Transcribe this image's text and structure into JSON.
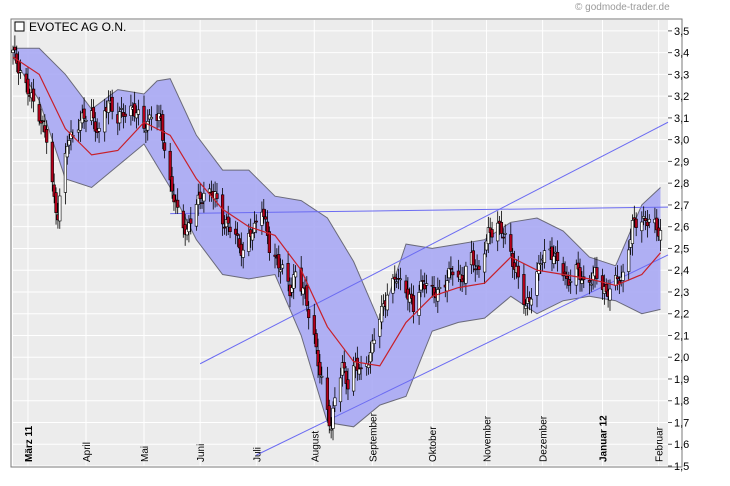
{
  "copyright": "© godmode-trader.de",
  "colors": {
    "band": "#a9a9f4",
    "band_edge": "#6a6a7a",
    "sma": "#c8202a",
    "trendline": "#6b6bf2",
    "candle_down": "#b3001a",
    "candle_up": "#ffffff",
    "plot_bg": "#ececec",
    "grid": "#ffffff"
  },
  "chart_data": {
    "type": "candlestick",
    "title": "EVOTEC AG O.N.",
    "y_axis_side": "right",
    "ylim": [
      1.5,
      3.55
    ],
    "y_ticks": [
      "3,5",
      "3,4",
      "3,3",
      "3,2",
      "3,1",
      "3,0",
      "2,9",
      "2,8",
      "2,7",
      "2,6",
      "2,5",
      "2,4",
      "2,3",
      "2,2",
      "2,1",
      "2,0",
      "1,9",
      "1,8",
      "1,7",
      "1,6",
      "1,5"
    ],
    "y_tick_values": [
      3.5,
      3.4,
      3.3,
      3.2,
      3.1,
      3.0,
      2.9,
      2.8,
      2.7,
      2.6,
      2.5,
      2.4,
      2.3,
      2.2,
      2.1,
      2.0,
      1.9,
      1.8,
      1.7,
      1.6,
      1.5
    ],
    "grid": true,
    "x_axis": {
      "start": "2011-02-21",
      "end": "2012-02-06",
      "labels": [
        {
          "date": "2011-03-01",
          "text": "März 11",
          "bold": true
        },
        {
          "date": "2011-04-01",
          "text": "April",
          "bold": false
        },
        {
          "date": "2011-05-02",
          "text": "Mai",
          "bold": false
        },
        {
          "date": "2011-06-01",
          "text": "Juni",
          "bold": false
        },
        {
          "date": "2011-07-01",
          "text": "Juli",
          "bold": false
        },
        {
          "date": "2011-08-01",
          "text": "August",
          "bold": false
        },
        {
          "date": "2011-09-01",
          "text": "September",
          "bold": false
        },
        {
          "date": "2011-10-03",
          "text": "Oktober",
          "bold": false
        },
        {
          "date": "2011-11-01",
          "text": "November",
          "bold": false
        },
        {
          "date": "2011-12-01",
          "text": "Dezember",
          "bold": false
        },
        {
          "date": "2012-01-02",
          "text": "Januar 12",
          "bold": true
        },
        {
          "date": "2012-02-01",
          "text": "Februar",
          "bold": false
        }
      ]
    },
    "close_path": [
      {
        "date": "2011-02-21",
        "close": 3.4
      },
      {
        "date": "2011-02-24",
        "close": 3.34
      },
      {
        "date": "2011-03-01",
        "close": 3.22
      },
      {
        "date": "2011-03-07",
        "close": 3.12
      },
      {
        "date": "2011-03-11",
        "close": 3.0
      },
      {
        "date": "2011-03-15",
        "close": 2.72
      },
      {
        "date": "2011-03-17",
        "close": 2.66
      },
      {
        "date": "2011-03-22",
        "close": 2.98
      },
      {
        "date": "2011-03-28",
        "close": 3.08
      },
      {
        "date": "2011-04-04",
        "close": 3.12
      },
      {
        "date": "2011-04-08",
        "close": 3.02
      },
      {
        "date": "2011-04-13",
        "close": 3.18
      },
      {
        "date": "2011-04-18",
        "close": 3.1
      },
      {
        "date": "2011-04-26",
        "close": 3.15
      },
      {
        "date": "2011-05-02",
        "close": 3.05
      },
      {
        "date": "2011-05-06",
        "close": 3.12
      },
      {
        "date": "2011-05-11",
        "close": 3.08
      },
      {
        "date": "2011-05-16",
        "close": 2.8
      },
      {
        "date": "2011-05-20",
        "close": 2.66
      },
      {
        "date": "2011-05-25",
        "close": 2.58
      },
      {
        "date": "2011-05-30",
        "close": 2.7
      },
      {
        "date": "2011-06-03",
        "close": 2.76
      },
      {
        "date": "2011-06-09",
        "close": 2.74
      },
      {
        "date": "2011-06-14",
        "close": 2.62
      },
      {
        "date": "2011-06-20",
        "close": 2.56
      },
      {
        "date": "2011-06-24",
        "close": 2.48
      },
      {
        "date": "2011-06-30",
        "close": 2.6
      },
      {
        "date": "2011-07-04",
        "close": 2.7
      },
      {
        "date": "2011-07-08",
        "close": 2.5
      },
      {
        "date": "2011-07-14",
        "close": 2.42
      },
      {
        "date": "2011-07-19",
        "close": 2.3
      },
      {
        "date": "2011-07-22",
        "close": 2.4
      },
      {
        "date": "2011-07-27",
        "close": 2.28
      },
      {
        "date": "2011-08-01",
        "close": 2.1
      },
      {
        "date": "2011-08-04",
        "close": 1.92
      },
      {
        "date": "2011-08-08",
        "close": 1.75
      },
      {
        "date": "2011-08-10",
        "close": 1.68
      },
      {
        "date": "2011-08-12",
        "close": 1.82
      },
      {
        "date": "2011-08-16",
        "close": 1.95
      },
      {
        "date": "2011-08-19",
        "close": 1.88
      },
      {
        "date": "2011-08-23",
        "close": 1.97
      },
      {
        "date": "2011-08-26",
        "close": 1.92
      },
      {
        "date": "2011-08-31",
        "close": 2.02
      },
      {
        "date": "2011-09-05",
        "close": 2.18
      },
      {
        "date": "2011-09-09",
        "close": 2.3
      },
      {
        "date": "2011-09-14",
        "close": 2.36
      },
      {
        "date": "2011-09-19",
        "close": 2.32
      },
      {
        "date": "2011-09-23",
        "close": 2.22
      },
      {
        "date": "2011-09-28",
        "close": 2.36
      },
      {
        "date": "2011-10-04",
        "close": 2.28
      },
      {
        "date": "2011-10-10",
        "close": 2.35
      },
      {
        "date": "2011-10-14",
        "close": 2.4
      },
      {
        "date": "2011-10-19",
        "close": 2.36
      },
      {
        "date": "2011-10-24",
        "close": 2.45
      },
      {
        "date": "2011-10-28",
        "close": 2.4
      },
      {
        "date": "2011-11-02",
        "close": 2.56
      },
      {
        "date": "2011-11-07",
        "close": 2.62
      },
      {
        "date": "2011-11-11",
        "close": 2.54
      },
      {
        "date": "2011-11-17",
        "close": 2.4
      },
      {
        "date": "2011-11-22",
        "close": 2.22
      },
      {
        "date": "2011-11-25",
        "close": 2.3
      },
      {
        "date": "2011-11-30",
        "close": 2.44
      },
      {
        "date": "2011-12-05",
        "close": 2.5
      },
      {
        "date": "2011-12-09",
        "close": 2.44
      },
      {
        "date": "2011-12-14",
        "close": 2.35
      },
      {
        "date": "2011-12-19",
        "close": 2.4
      },
      {
        "date": "2011-12-23",
        "close": 2.34
      },
      {
        "date": "2011-12-29",
        "close": 2.38
      },
      {
        "date": "2012-01-04",
        "close": 2.3
      },
      {
        "date": "2012-01-09",
        "close": 2.34
      },
      {
        "date": "2012-01-13",
        "close": 2.38
      },
      {
        "date": "2012-01-18",
        "close": 2.6
      },
      {
        "date": "2012-01-23",
        "close": 2.64
      },
      {
        "date": "2012-01-27",
        "close": 2.62
      },
      {
        "date": "2012-02-02",
        "close": 2.58
      }
    ],
    "indicators": {
      "moving_average_points": [
        {
          "date": "2011-02-21",
          "value": 3.38
        },
        {
          "date": "2011-03-07",
          "value": 3.3
        },
        {
          "date": "2011-03-21",
          "value": 3.05
        },
        {
          "date": "2011-04-04",
          "value": 2.93
        },
        {
          "date": "2011-04-18",
          "value": 2.95
        },
        {
          "date": "2011-05-02",
          "value": 3.08
        },
        {
          "date": "2011-05-16",
          "value": 3.02
        },
        {
          "date": "2011-05-30",
          "value": 2.82
        },
        {
          "date": "2011-06-13",
          "value": 2.68
        },
        {
          "date": "2011-06-27",
          "value": 2.6
        },
        {
          "date": "2011-07-11",
          "value": 2.56
        },
        {
          "date": "2011-07-25",
          "value": 2.4
        },
        {
          "date": "2011-08-08",
          "value": 2.14
        },
        {
          "date": "2011-08-22",
          "value": 1.98
        },
        {
          "date": "2011-09-05",
          "value": 1.96
        },
        {
          "date": "2011-09-19",
          "value": 2.16
        },
        {
          "date": "2011-10-03",
          "value": 2.28
        },
        {
          "date": "2011-10-17",
          "value": 2.32
        },
        {
          "date": "2011-10-31",
          "value": 2.34
        },
        {
          "date": "2011-11-14",
          "value": 2.46
        },
        {
          "date": "2011-11-28",
          "value": 2.4
        },
        {
          "date": "2011-12-12",
          "value": 2.38
        },
        {
          "date": "2011-12-26",
          "value": 2.36
        },
        {
          "date": "2012-01-09",
          "value": 2.33
        },
        {
          "date": "2012-01-23",
          "value": 2.38
        },
        {
          "date": "2012-02-02",
          "value": 2.48
        }
      ],
      "bollinger_upper": [
        {
          "date": "2011-02-21",
          "value": 3.42
        },
        {
          "date": "2011-03-07",
          "value": 3.42
        },
        {
          "date": "2011-03-21",
          "value": 3.3
        },
        {
          "date": "2011-04-04",
          "value": 3.14
        },
        {
          "date": "2011-04-18",
          "value": 3.23
        },
        {
          "date": "2011-05-02",
          "value": 3.21
        },
        {
          "date": "2011-05-09",
          "value": 3.27
        },
        {
          "date": "2011-05-16",
          "value": 3.28
        },
        {
          "date": "2011-05-30",
          "value": 3.02
        },
        {
          "date": "2011-06-13",
          "value": 2.86
        },
        {
          "date": "2011-06-27",
          "value": 2.86
        },
        {
          "date": "2011-07-11",
          "value": 2.74
        },
        {
          "date": "2011-07-25",
          "value": 2.72
        },
        {
          "date": "2011-08-08",
          "value": 2.64
        },
        {
          "date": "2011-08-22",
          "value": 2.44
        },
        {
          "date": "2011-09-05",
          "value": 2.16
        },
        {
          "date": "2011-09-19",
          "value": 2.52
        },
        {
          "date": "2011-10-03",
          "value": 2.5
        },
        {
          "date": "2011-10-17",
          "value": 2.52
        },
        {
          "date": "2011-10-31",
          "value": 2.54
        },
        {
          "date": "2011-11-14",
          "value": 2.62
        },
        {
          "date": "2011-11-28",
          "value": 2.64
        },
        {
          "date": "2011-12-12",
          "value": 2.58
        },
        {
          "date": "2011-12-26",
          "value": 2.46
        },
        {
          "date": "2012-01-09",
          "value": 2.42
        },
        {
          "date": "2012-01-23",
          "value": 2.7
        },
        {
          "date": "2012-02-02",
          "value": 2.78
        }
      ],
      "bollinger_lower": [
        {
          "date": "2011-02-21",
          "value": 3.38
        },
        {
          "date": "2011-03-07",
          "value": 3.18
        },
        {
          "date": "2011-03-21",
          "value": 2.82
        },
        {
          "date": "2011-04-04",
          "value": 2.78
        },
        {
          "date": "2011-04-18",
          "value": 2.88
        },
        {
          "date": "2011-05-02",
          "value": 2.98
        },
        {
          "date": "2011-05-16",
          "value": 2.78
        },
        {
          "date": "2011-05-30",
          "value": 2.54
        },
        {
          "date": "2011-06-13",
          "value": 2.38
        },
        {
          "date": "2011-06-27",
          "value": 2.36
        },
        {
          "date": "2011-07-11",
          "value": 2.38
        },
        {
          "date": "2011-07-25",
          "value": 2.1
        },
        {
          "date": "2011-08-08",
          "value": 1.7
        },
        {
          "date": "2011-08-22",
          "value": 1.68
        },
        {
          "date": "2011-09-05",
          "value": 1.78
        },
        {
          "date": "2011-09-19",
          "value": 1.82
        },
        {
          "date": "2011-10-03",
          "value": 2.12
        },
        {
          "date": "2011-10-17",
          "value": 2.16
        },
        {
          "date": "2011-10-31",
          "value": 2.18
        },
        {
          "date": "2011-11-14",
          "value": 2.28
        },
        {
          "date": "2011-11-28",
          "value": 2.2
        },
        {
          "date": "2011-12-12",
          "value": 2.26
        },
        {
          "date": "2011-12-26",
          "value": 2.28
        },
        {
          "date": "2012-01-09",
          "value": 2.26
        },
        {
          "date": "2012-01-23",
          "value": 2.2
        },
        {
          "date": "2012-02-02",
          "value": 2.22
        }
      ]
    },
    "trendlines": [
      {
        "from": {
          "date": "2011-06-01",
          "value": 1.97
        },
        "to": {
          "date": "2012-02-06",
          "value": 3.08
        }
      },
      {
        "from": {
          "date": "2011-07-01",
          "value": 1.55
        },
        "to": {
          "date": "2012-02-06",
          "value": 2.47
        }
      },
      {
        "from": {
          "date": "2011-05-16",
          "value": 2.66
        },
        "to": {
          "date": "2012-02-06",
          "value": 2.69
        }
      }
    ]
  }
}
